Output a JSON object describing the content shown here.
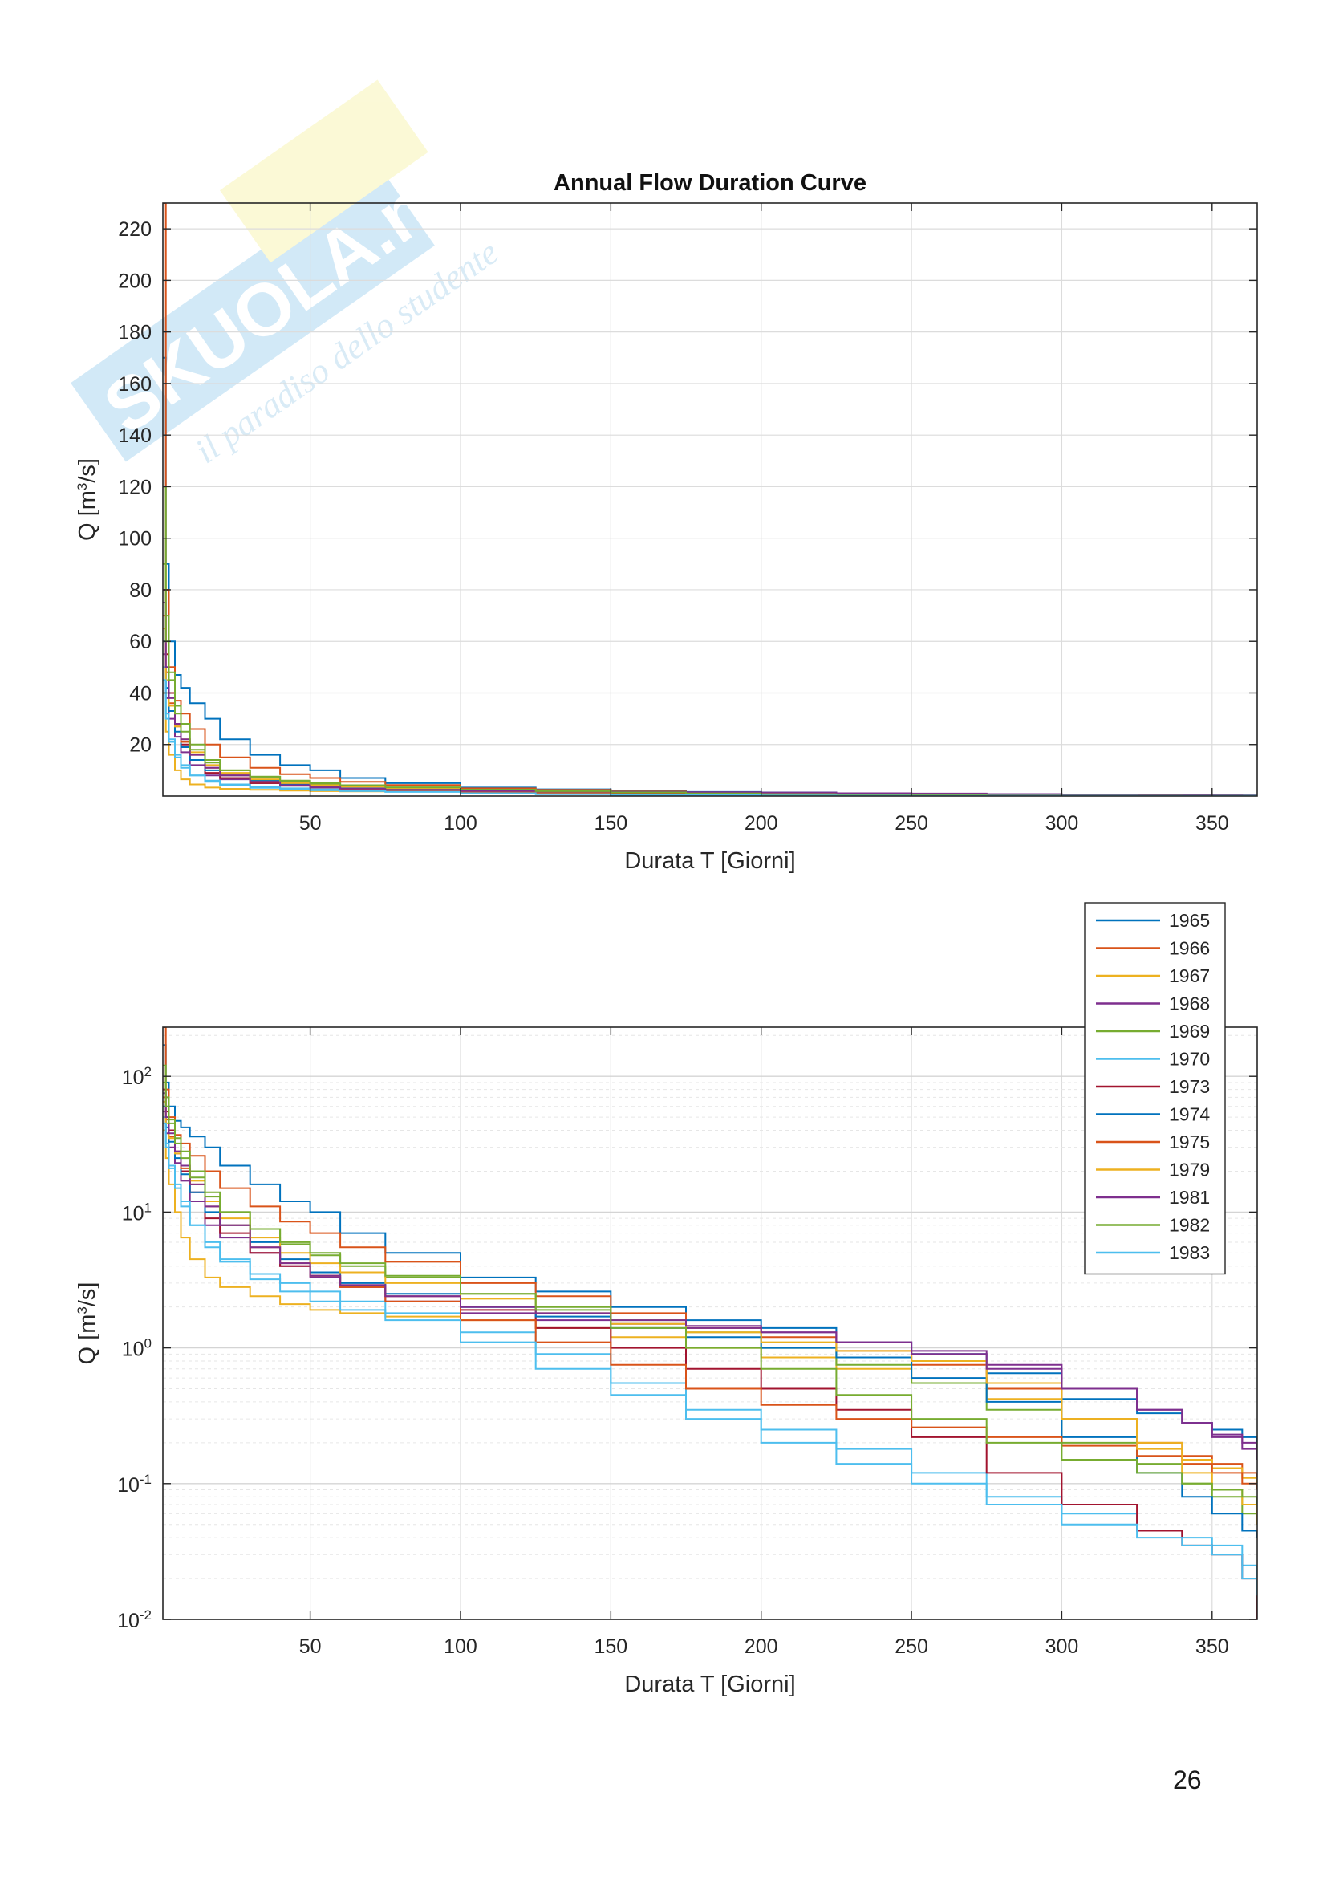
{
  "page_number": "26",
  "watermark": {
    "brand": "SKUOLA.net",
    "tagline": "il paradiso dello studente"
  },
  "chart_data": [
    {
      "type": "line",
      "title": "Annual Flow Duration Curve",
      "xlabel": "Durata T [Giorni]",
      "ylabel": "Q [m^3/s]",
      "xlim": [
        1,
        365
      ],
      "ylim": [
        0,
        230
      ],
      "yscale": "linear",
      "xticks": [
        50,
        100,
        150,
        200,
        250,
        300,
        350
      ],
      "yticks": [
        20,
        40,
        60,
        80,
        100,
        120,
        140,
        160,
        180,
        200,
        220
      ],
      "grid": true,
      "legend": "none"
    },
    {
      "type": "line",
      "title": "",
      "xlabel": "Durata T [Giorni]",
      "ylabel": "Q [m^3/s]",
      "xlim": [
        1,
        365
      ],
      "ylim": [
        0.01,
        230
      ],
      "yscale": "log",
      "xticks": [
        50,
        100,
        150,
        200,
        250,
        300,
        350
      ],
      "yticks": [
        "10^-2",
        "10^-1",
        "10^0",
        "10^1",
        "10^2"
      ],
      "grid": true,
      "legend": "top-right"
    }
  ],
  "x": [
    1,
    2,
    3,
    5,
    7,
    10,
    15,
    20,
    30,
    40,
    50,
    60,
    75,
    100,
    125,
    150,
    175,
    200,
    225,
    250,
    275,
    300,
    325,
    340,
    350,
    360,
    365
  ],
  "series": [
    {
      "name": "1965",
      "color": "#0072BD",
      "values": [
        170,
        90,
        60,
        47,
        42,
        36,
        30,
        22,
        16,
        12,
        10,
        7,
        5,
        3.3,
        2.6,
        2.0,
        1.6,
        1.4,
        1.1,
        0.9,
        0.65,
        0.42,
        0.33,
        0.28,
        0.25,
        0.22,
        0.2
      ]
    },
    {
      "name": "1966",
      "color": "#D95319",
      "values": [
        230,
        80,
        50,
        37,
        32,
        26,
        20,
        15,
        11,
        8.5,
        7,
        5.5,
        4.3,
        3.0,
        2.4,
        1.8,
        1.4,
        1.2,
        0.95,
        0.75,
        0.5,
        0.3,
        0.2,
        0.16,
        0.14,
        0.12,
        0.11
      ]
    },
    {
      "name": "1967",
      "color": "#EDB120",
      "values": [
        40,
        25,
        16,
        10,
        6.5,
        4.5,
        3.3,
        2.8,
        2.4,
        2.1,
        1.9,
        1.8,
        1.7,
        1.6,
        1.4,
        1.2,
        1.0,
        0.85,
        0.7,
        0.55,
        0.42,
        0.3,
        0.2,
        0.15,
        0.13,
        0.11,
        0.1
      ]
    },
    {
      "name": "1968",
      "color": "#7E2F8E",
      "values": [
        55,
        38,
        30,
        23,
        17,
        12,
        8,
        6.5,
        5,
        4,
        3.3,
        2.8,
        2.2,
        1.8,
        1.6,
        1.5,
        1.4,
        1.3,
        1.1,
        0.95,
        0.75,
        0.5,
        0.35,
        0.28,
        0.22,
        0.18,
        0.15
      ]
    },
    {
      "name": "1969",
      "color": "#77AC30",
      "values": [
        120,
        70,
        48,
        35,
        28,
        20,
        14,
        10,
        7.5,
        5.8,
        4.8,
        4.0,
        3.3,
        2.5,
        2.0,
        1.6,
        1.3,
        1.0,
        0.75,
        0.55,
        0.35,
        0.2,
        0.14,
        0.1,
        0.08,
        0.06,
        0.05
      ]
    },
    {
      "name": "1970",
      "color": "#4DBEEE",
      "values": [
        50,
        32,
        22,
        16,
        12,
        8,
        6,
        4.5,
        3.5,
        3,
        2.6,
        2.2,
        1.8,
        1.3,
        0.9,
        0.55,
        0.35,
        0.25,
        0.18,
        0.12,
        0.08,
        0.06,
        0.045,
        0.04,
        0.035,
        0.025,
        0.01
      ]
    },
    {
      "name": "1973",
      "color": "#A2142F",
      "values": [
        80,
        55,
        40,
        28,
        20,
        14,
        9,
        7,
        5,
        4,
        3.4,
        2.9,
        2.4,
        1.9,
        1.4,
        1.0,
        0.7,
        0.5,
        0.35,
        0.22,
        0.12,
        0.07,
        0.045,
        0.035,
        0.03,
        0.02,
        0.01
      ]
    },
    {
      "name": "1974",
      "color": "#0072BD",
      "values": [
        60,
        42,
        33,
        25,
        19,
        14,
        10,
        8,
        6,
        4.5,
        3.6,
        3.0,
        2.5,
        2.0,
        1.7,
        1.4,
        1.2,
        1.0,
        0.85,
        0.6,
        0.4,
        0.22,
        0.12,
        0.08,
        0.06,
        0.045,
        0.04
      ]
    },
    {
      "name": "1975",
      "color": "#D95319",
      "values": [
        70,
        48,
        36,
        27,
        21,
        16,
        11,
        8,
        5.5,
        4.2,
        3.4,
        2.8,
        2.2,
        1.6,
        1.1,
        0.75,
        0.5,
        0.38,
        0.3,
        0.26,
        0.22,
        0.19,
        0.16,
        0.14,
        0.12,
        0.1,
        0.09
      ]
    },
    {
      "name": "1979",
      "color": "#EDB120",
      "values": [
        65,
        45,
        35,
        27,
        22,
        17,
        12,
        9,
        6.5,
        5,
        4.2,
        3.6,
        3.0,
        2.3,
        1.8,
        1.5,
        1.3,
        1.1,
        0.95,
        0.8,
        0.55,
        0.3,
        0.18,
        0.12,
        0.09,
        0.07,
        0.05
      ]
    },
    {
      "name": "1981",
      "color": "#7E2F8E",
      "values": [
        75,
        50,
        38,
        28,
        22,
        16,
        11,
        8,
        5.5,
        4.2,
        3.4,
        2.9,
        2.4,
        2.0,
        1.8,
        1.6,
        1.45,
        1.3,
        1.1,
        0.9,
        0.7,
        0.5,
        0.35,
        0.28,
        0.23,
        0.2,
        0.18
      ]
    },
    {
      "name": "1982",
      "color": "#77AC30",
      "values": [
        90,
        60,
        45,
        32,
        25,
        18,
        13,
        10,
        7.5,
        6,
        5,
        4.2,
        3.4,
        2.5,
        1.9,
        1.4,
        1.0,
        0.7,
        0.45,
        0.3,
        0.2,
        0.15,
        0.12,
        0.1,
        0.09,
        0.08,
        0.07
      ]
    },
    {
      "name": "1983",
      "color": "#4DBEEE",
      "values": [
        45,
        30,
        21,
        15,
        11,
        8,
        5.5,
        4.3,
        3.2,
        2.6,
        2.2,
        1.9,
        1.6,
        1.1,
        0.7,
        0.45,
        0.3,
        0.2,
        0.14,
        0.1,
        0.07,
        0.05,
        0.04,
        0.035,
        0.03,
        0.02,
        0.015
      ]
    }
  ]
}
